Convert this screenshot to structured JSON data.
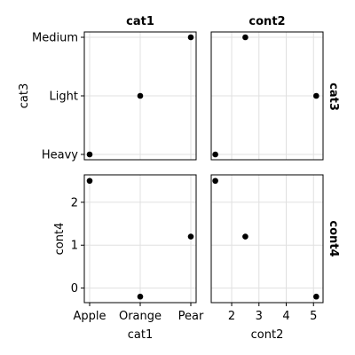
{
  "chart_data": {
    "type": "scatter",
    "layout": "pair-grid",
    "columns": [
      {
        "var": "cat1",
        "title": "cat1",
        "xlabel": "cat1",
        "kind": "categorical",
        "categories": [
          "Apple",
          "Orange",
          "Pear"
        ]
      },
      {
        "var": "cont2",
        "title": "cont2",
        "xlabel": "cont2",
        "kind": "numeric",
        "ticks": [
          2,
          3,
          4,
          5
        ],
        "ticklabels": [
          "2",
          "3",
          "4",
          "5"
        ],
        "range": [
          1.25,
          5.35
        ]
      }
    ],
    "rows": [
      {
        "var": "cat3",
        "side_title": "cat3",
        "ylabel": "cat3",
        "kind": "categorical",
        "categories": [
          "Heavy",
          "Light",
          "Medium"
        ]
      },
      {
        "var": "cont4",
        "side_title": "cont4",
        "ylabel": "cont4",
        "kind": "numeric",
        "ticks": [
          0,
          1,
          2
        ],
        "ticklabels": [
          "0",
          "1",
          "2"
        ],
        "range": [
          -0.34,
          2.64
        ]
      }
    ],
    "points": [
      {
        "cat1": "Apple",
        "cont2": 1.4,
        "cat3": "Heavy",
        "cont4": 2.5
      },
      {
        "cat1": "Orange",
        "cont2": 5.1,
        "cat3": "Light",
        "cont4": -0.2
      },
      {
        "cat1": "Pear",
        "cont2": 2.5,
        "cat3": "Medium",
        "cont4": 1.2
      }
    ],
    "grid": true,
    "marker_color": "#000000"
  }
}
